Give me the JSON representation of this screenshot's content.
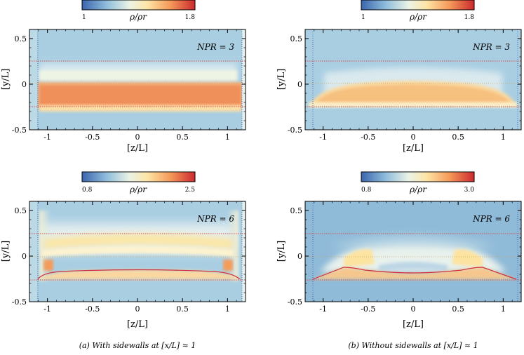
{
  "caption_left": "(a) With sidewalls at [x/L] ≈ 1",
  "caption_right": "(b) Without sidewalls at [x/L] ≈ 1",
  "colors": {
    "jet_red": "#cf2f3a",
    "dashed_red": "#d05050",
    "dashed_blue": "#3d5fa8",
    "ambient_blue": "#a9cee2",
    "ambient_blue_dark": "#8fbad8"
  },
  "chart_data": [
    {
      "type": "heatmap",
      "panel": "top-left",
      "annotation": "NPR = 3",
      "xlabel": "[z/L]",
      "ylabel": "[y/L]",
      "xlim": [
        -1.2,
        1.2
      ],
      "ylim": [
        -0.5,
        0.6
      ],
      "xticks": [
        "-1",
        "-0.5",
        "0",
        "0.5",
        "1"
      ],
      "yticks": [
        "-0.5",
        "0",
        "0.5"
      ],
      "colorbar": {
        "label": "ρ/ρr",
        "min_label": "1",
        "max_label": "1.8",
        "min": 1.0,
        "max": 1.8
      },
      "dashed_y": [
        0.25,
        -0.25
      ],
      "dashed_z": [
        -1.12,
        1.12
      ]
    },
    {
      "type": "heatmap",
      "panel": "top-right",
      "annotation": "NPR = 3",
      "xlabel": "[z/L]",
      "ylabel": "[y/L]",
      "xlim": [
        -1.2,
        1.2
      ],
      "ylim": [
        -0.5,
        0.6
      ],
      "xticks": [
        "-1",
        "-0.5",
        "0",
        "0.5",
        "1"
      ],
      "yticks": [
        "-0.5",
        "0",
        "0.5"
      ],
      "colorbar": {
        "label": "ρ/ρr",
        "min_label": "1",
        "max_label": "1.8",
        "min": 1.0,
        "max": 1.8
      },
      "dashed_y": [
        0.25,
        -0.25
      ],
      "dashed_z": [
        -1.12,
        1.12
      ]
    },
    {
      "type": "heatmap",
      "panel": "bottom-left",
      "annotation": "NPR = 6",
      "xlabel": "[z/L]",
      "ylabel": "[y/L]",
      "xlim": [
        -1.2,
        1.2
      ],
      "ylim": [
        -0.5,
        0.6
      ],
      "xticks": [
        "-1",
        "-0.5",
        "0",
        "0.5",
        "1"
      ],
      "yticks": [
        "-0.5",
        "0",
        "0.5"
      ],
      "colorbar": {
        "label": "ρ/ρr",
        "min_label": "0.8",
        "max_label": "2.5",
        "min": 0.8,
        "max": 2.5
      },
      "dashed_y": [
        0.25,
        -0.25
      ],
      "dashed_z": [
        -1.12,
        1.12
      ]
    },
    {
      "type": "heatmap",
      "panel": "bottom-right",
      "annotation": "NPR = 6",
      "xlabel": "[z/L]",
      "ylabel": "[y/L]",
      "xlim": [
        -1.2,
        1.2
      ],
      "ylim": [
        -0.5,
        0.6
      ],
      "xticks": [
        "-1",
        "-0.5",
        "0",
        "0.5",
        "1"
      ],
      "yticks": [
        "-0.5",
        "0",
        "0.5"
      ],
      "colorbar": {
        "label": "ρ/ρr",
        "min_label": "0.8",
        "max_label": "3.0",
        "min": 0.8,
        "max": 3.0
      },
      "dashed_y": [
        0.25,
        -0.25
      ],
      "dashed_z": [
        -1.12,
        1.12
      ]
    }
  ]
}
